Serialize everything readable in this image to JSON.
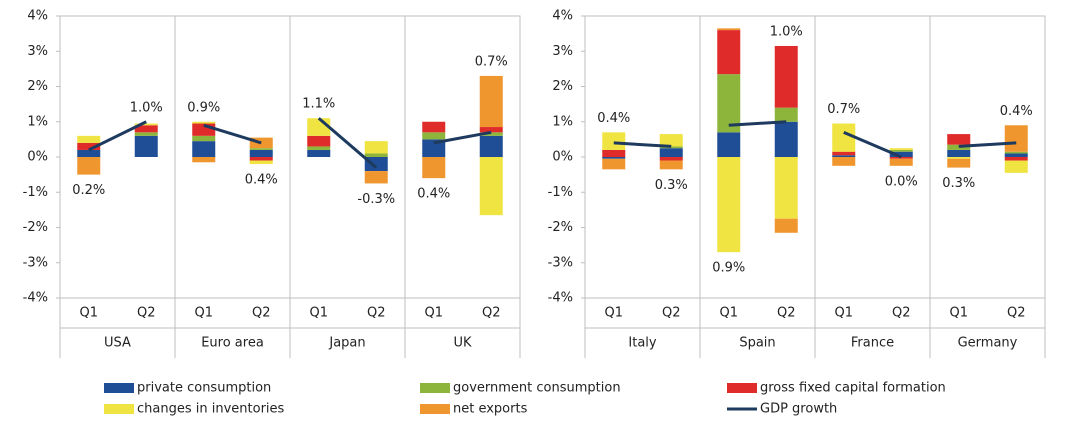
{
  "chart_data": [
    {
      "type": "bar",
      "stacked": true,
      "categories": [
        "Q1",
        "Q2",
        "Q1",
        "Q2",
        "Q1",
        "Q2",
        "Q1",
        "Q2"
      ],
      "groups": [
        "USA",
        "Euro area",
        "Japan",
        "UK"
      ],
      "ylim": [
        -4,
        4
      ],
      "yticks": [
        {
          "value": -4,
          "label": "-4%"
        },
        {
          "value": -3,
          "label": "-3%"
        },
        {
          "value": -2,
          "label": "-2%"
        },
        {
          "value": -1,
          "label": "-1%"
        },
        {
          "value": 0,
          "label": "0%"
        },
        {
          "value": 1,
          "label": "1%"
        },
        {
          "value": 2,
          "label": "2%"
        },
        {
          "value": 3,
          "label": "3%"
        },
        {
          "value": 4,
          "label": "4%"
        }
      ],
      "series": [
        {
          "name": "private consumption",
          "color": "#1f4e96",
          "values": [
            0.2,
            0.6,
            0.45,
            0.2,
            0.2,
            -0.4,
            0.5,
            0.6
          ]
        },
        {
          "name": "government consumption",
          "color": "#8db53c",
          "values": [
            0,
            0.1,
            0.15,
            0.05,
            0.1,
            0.1,
            0.2,
            0.1
          ]
        },
        {
          "name": "gross fixed capital formation",
          "color": "#e02b2b",
          "values": [
            0.2,
            0.2,
            0.35,
            -0.1,
            0.3,
            0,
            0.3,
            0.15
          ]
        },
        {
          "name": "changes in inventories",
          "color": "#f0e442",
          "values": [
            0.2,
            0.05,
            0.05,
            -0.1,
            0.5,
            0.35,
            0,
            -1.65
          ]
        },
        {
          "name": "net exports",
          "color": "#f0962e",
          "values": [
            -0.5,
            0,
            -0.15,
            0.3,
            0,
            -0.35,
            -0.6,
            1.45
          ]
        },
        {
          "name": "GDP growth",
          "type": "line",
          "color": "#1e3a5f",
          "values": [
            0.2,
            1.0,
            0.9,
            0.4,
            1.1,
            -0.3,
            0.4,
            0.7
          ],
          "value_labels": [
            "0.2%",
            "1.0%",
            "0.9%",
            "0.4%",
            "1.1%",
            "-0.3%",
            "0.4%",
            "0.7%"
          ]
        }
      ]
    },
    {
      "type": "bar",
      "stacked": true,
      "categories": [
        "Q1",
        "Q2",
        "Q1",
        "Q2",
        "Q1",
        "Q2",
        "Q1",
        "Q2"
      ],
      "groups": [
        "Italy",
        "Spain",
        "France",
        "Germany"
      ],
      "ylim": [
        -4,
        4
      ],
      "yticks": [
        {
          "value": -4,
          "label": "-4%"
        },
        {
          "value": -3,
          "label": "-3%"
        },
        {
          "value": -2,
          "label": "-2%"
        },
        {
          "value": -1,
          "label": "-1%"
        },
        {
          "value": 0,
          "label": "0%"
        },
        {
          "value": 1,
          "label": "1%"
        },
        {
          "value": 2,
          "label": "2%"
        },
        {
          "value": 3,
          "label": "3%"
        },
        {
          "value": 4,
          "label": "4%"
        }
      ],
      "series": [
        {
          "color": "#1f4e96",
          "values": [
            -0.05,
            0.25,
            0.7,
            1.0,
            0.05,
            0.15,
            0.2,
            0.1
          ]
        },
        {
          "color": "#8db53c",
          "values": [
            0,
            0.05,
            1.65,
            0.4,
            0,
            0.05,
            0.15,
            0.05
          ]
        },
        {
          "color": "#e02b2b",
          "values": [
            0.2,
            -0.1,
            1.25,
            1.75,
            0.1,
            -0.05,
            0.3,
            -0.1
          ]
        },
        {
          "color": "#f0e442",
          "values": [
            0.5,
            0.35,
            -2.7,
            -1.75,
            0.8,
            0.05,
            -0.05,
            -0.35
          ]
        },
        {
          "color": "#f0962e",
          "values": [
            -0.3,
            -0.25,
            0.05,
            -0.4,
            -0.25,
            -0.2,
            -0.25,
            0.75
          ]
        },
        {
          "type": "line",
          "color": "#1e3a5f",
          "values": [
            0.4,
            0.3,
            0.9,
            1.0,
            0.7,
            0.0,
            0.3,
            0.4
          ],
          "value_labels": [
            "0.4%",
            "0.3%",
            "0.9%",
            "1.0%",
            "0.7%",
            "0.0%",
            "0.3%",
            "0.4%"
          ]
        }
      ]
    }
  ]
}
